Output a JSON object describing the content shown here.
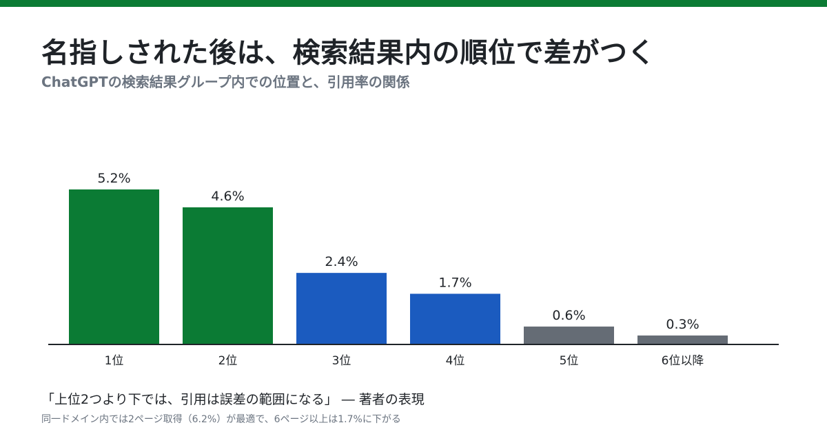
{
  "header": {
    "title": "名指しされた後は、検索結果内の順位で差がつく",
    "subtitle": "ChatGPTの検索結果グループ内での位置と、引用率の関係",
    "bar_color": "#0b7b34"
  },
  "chart_data": {
    "type": "bar",
    "categories": [
      "1位",
      "2位",
      "3位",
      "4位",
      "5位",
      "6位以降"
    ],
    "values": [
      5.2,
      4.6,
      2.4,
      1.7,
      0.6,
      0.3
    ],
    "labels": [
      "5.2%",
      "4.6%",
      "2.4%",
      "1.7%",
      "0.6%",
      "0.3%"
    ],
    "colors": [
      "#0b7b34",
      "#0b7b34",
      "#1b5bbf",
      "#1b5bbf",
      "#656c75",
      "#656c75"
    ],
    "ylim": [
      0,
      6
    ],
    "grid": false,
    "legend": "none"
  },
  "footer": {
    "quote": "「上位2つより下では、引用は誤差の範囲になる」 ― 著者の表現",
    "note": "同一ドメイン内では2ページ取得（6.2%）が最適で、6ページ以上は1.7%に下がる"
  }
}
